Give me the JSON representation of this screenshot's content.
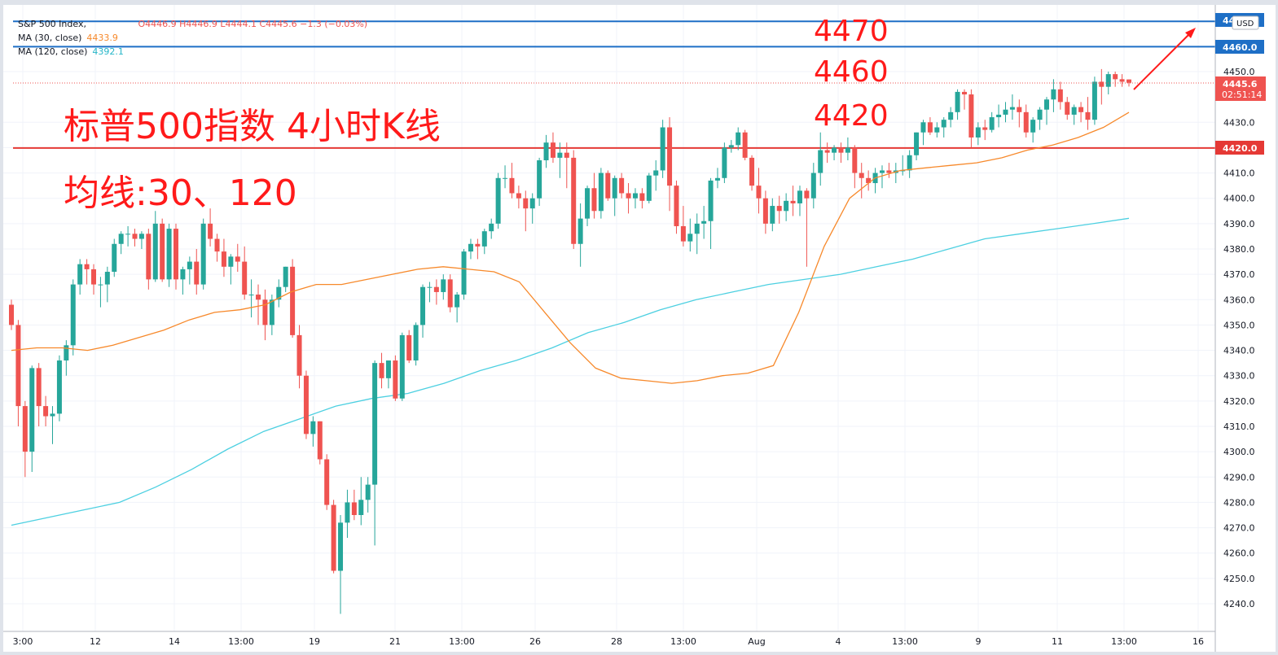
{
  "legend": {
    "symbol": "S&P 500 Index,",
    "ohlc": "O4446.9  H4446.9  L4444.1  C4445.6  −1.3 (−0.03%)",
    "ma30_label": "MA (30, close)",
    "ma30_value": "4433.9",
    "ma120_label": "MA (120, close)",
    "ma120_value": "4392.1"
  },
  "annotations": {
    "title": "标普500指数 4小时K线",
    "subtitle": "均线:30、120",
    "level_1": "4470",
    "level_2": "4460",
    "level_3": "4420"
  },
  "price_scale": {
    "currency": "USD",
    "last_price": "4445.6",
    "countdown": "02:51:14",
    "hline_top_label": "4470.0",
    "hline_mid_label": "4460.0",
    "hline_red_label": "4420.0"
  },
  "colors": {
    "up": "#26a69a",
    "down": "#ef5350",
    "ma30": "#f7892b",
    "ma120": "#4dd0e1",
    "hline_blue": "#1e6fc6",
    "hline_red": "#e53935",
    "annotation": "#ff1a1a"
  },
  "chart_data": {
    "type": "candlestick",
    "timeframe": "4h",
    "ylim": [
      4233,
      4475
    ],
    "y_ticks": [
      4240,
      4250,
      4260,
      4270,
      4280,
      4290,
      4300,
      4310,
      4320,
      4330,
      4340,
      4350,
      4360,
      4370,
      4380,
      4390,
      4400,
      4410,
      4420,
      4430,
      4450
    ],
    "x_labels": [
      "3:00",
      "12",
      "14",
      "13:00",
      "19",
      "21",
      "13:00",
      "26",
      "28",
      "13:00",
      "Aug",
      "4",
      "13:00",
      "9",
      "11",
      "13:00",
      "16"
    ],
    "horizontal_lines": [
      4470,
      4460,
      4420
    ],
    "candles": [
      {
        "o": 4358,
        "h": 4360,
        "l": 4348,
        "c": 4350
      },
      {
        "o": 4350,
        "h": 4352,
        "l": 4310,
        "c": 4318
      },
      {
        "o": 4318,
        "h": 4320,
        "l": 4290,
        "c": 4300
      },
      {
        "o": 4300,
        "h": 4334,
        "l": 4292,
        "c": 4333
      },
      {
        "o": 4333,
        "h": 4335,
        "l": 4310,
        "c": 4318
      },
      {
        "o": 4318,
        "h": 4322,
        "l": 4310,
        "c": 4314
      },
      {
        "o": 4314,
        "h": 4318,
        "l": 4303,
        "c": 4315
      },
      {
        "o": 4315,
        "h": 4338,
        "l": 4312,
        "c": 4336
      },
      {
        "o": 4336,
        "h": 4344,
        "l": 4330,
        "c": 4342
      },
      {
        "o": 4342,
        "h": 4368,
        "l": 4338,
        "c": 4366
      },
      {
        "o": 4366,
        "h": 4376,
        "l": 4362,
        "c": 4374
      },
      {
        "o": 4374,
        "h": 4376,
        "l": 4366,
        "c": 4372
      },
      {
        "o": 4372,
        "h": 4374,
        "l": 4362,
        "c": 4366
      },
      {
        "o": 4366,
        "h": 4369,
        "l": 4357,
        "c": 4366
      },
      {
        "o": 4366,
        "h": 4373,
        "l": 4359,
        "c": 4371
      },
      {
        "o": 4371,
        "h": 4384,
        "l": 4369,
        "c": 4382
      },
      {
        "o": 4382,
        "h": 4387,
        "l": 4378,
        "c": 4386
      },
      {
        "o": 4386,
        "h": 4389,
        "l": 4381,
        "c": 4386
      },
      {
        "o": 4386,
        "h": 4388,
        "l": 4381,
        "c": 4384
      },
      {
        "o": 4384,
        "h": 4387,
        "l": 4380,
        "c": 4386
      },
      {
        "o": 4386,
        "h": 4388,
        "l": 4364,
        "c": 4368
      },
      {
        "o": 4368,
        "h": 4395,
        "l": 4367,
        "c": 4390
      },
      {
        "o": 4390,
        "h": 4392,
        "l": 4367,
        "c": 4368
      },
      {
        "o": 4368,
        "h": 4390,
        "l": 4365,
        "c": 4388
      },
      {
        "o": 4388,
        "h": 4390,
        "l": 4364,
        "c": 4368
      },
      {
        "o": 4368,
        "h": 4373,
        "l": 4362,
        "c": 4372
      },
      {
        "o": 4372,
        "h": 4377,
        "l": 4366,
        "c": 4375
      },
      {
        "o": 4375,
        "h": 4380,
        "l": 4362,
        "c": 4366
      },
      {
        "o": 4366,
        "h": 4392,
        "l": 4364,
        "c": 4390
      },
      {
        "o": 4390,
        "h": 4396,
        "l": 4381,
        "c": 4384
      },
      {
        "o": 4384,
        "h": 4386,
        "l": 4375,
        "c": 4379
      },
      {
        "o": 4379,
        "h": 4384,
        "l": 4369,
        "c": 4373
      },
      {
        "o": 4373,
        "h": 4378,
        "l": 4366,
        "c": 4377
      },
      {
        "o": 4377,
        "h": 4382,
        "l": 4371,
        "c": 4375
      },
      {
        "o": 4375,
        "h": 4381,
        "l": 4360,
        "c": 4362
      },
      {
        "o": 4362,
        "h": 4368,
        "l": 4353,
        "c": 4362
      },
      {
        "o": 4362,
        "h": 4366,
        "l": 4350,
        "c": 4360
      },
      {
        "o": 4360,
        "h": 4364,
        "l": 4344,
        "c": 4350
      },
      {
        "o": 4350,
        "h": 4362,
        "l": 4346,
        "c": 4360
      },
      {
        "o": 4360,
        "h": 4368,
        "l": 4357,
        "c": 4365
      },
      {
        "o": 4365,
        "h": 4373,
        "l": 4363,
        "c": 4373
      },
      {
        "o": 4373,
        "h": 4376,
        "l": 4345,
        "c": 4346
      },
      {
        "o": 4346,
        "h": 4350,
        "l": 4325,
        "c": 4330
      },
      {
        "o": 4330,
        "h": 4332,
        "l": 4305,
        "c": 4307
      },
      {
        "o": 4307,
        "h": 4314,
        "l": 4302,
        "c": 4312
      },
      {
        "o": 4312,
        "h": 4312,
        "l": 4295,
        "c": 4297
      },
      {
        "o": 4297,
        "h": 4299,
        "l": 4277,
        "c": 4279
      },
      {
        "o": 4279,
        "h": 4281,
        "l": 4252,
        "c": 4253
      },
      {
        "o": 4253,
        "h": 4275,
        "l": 4236,
        "c": 4272
      },
      {
        "o": 4272,
        "h": 4285,
        "l": 4266,
        "c": 4280
      },
      {
        "o": 4280,
        "h": 4285,
        "l": 4273,
        "c": 4275
      },
      {
        "o": 4275,
        "h": 4290,
        "l": 4271,
        "c": 4281
      },
      {
        "o": 4281,
        "h": 4290,
        "l": 4276,
        "c": 4287
      },
      {
        "o": 4287,
        "h": 4336,
        "l": 4263,
        "c": 4335
      },
      {
        "o": 4335,
        "h": 4339,
        "l": 4325,
        "c": 4329
      },
      {
        "o": 4329,
        "h": 4336,
        "l": 4325,
        "c": 4336
      },
      {
        "o": 4336,
        "h": 4338,
        "l": 4320,
        "c": 4321
      },
      {
        "o": 4321,
        "h": 4347,
        "l": 4320,
        "c": 4346
      },
      {
        "o": 4346,
        "h": 4348,
        "l": 4335,
        "c": 4336
      },
      {
        "o": 4336,
        "h": 4351,
        "l": 4334,
        "c": 4350
      },
      {
        "o": 4350,
        "h": 4366,
        "l": 4345,
        "c": 4365
      },
      {
        "o": 4365,
        "h": 4367,
        "l": 4359,
        "c": 4365
      },
      {
        "o": 4365,
        "h": 4368,
        "l": 4358,
        "c": 4363
      },
      {
        "o": 4363,
        "h": 4370,
        "l": 4360,
        "c": 4368
      },
      {
        "o": 4368,
        "h": 4370,
        "l": 4355,
        "c": 4357
      },
      {
        "o": 4357,
        "h": 4363,
        "l": 4351,
        "c": 4362
      },
      {
        "o": 4362,
        "h": 4380,
        "l": 4360,
        "c": 4379
      },
      {
        "o": 4379,
        "h": 4384,
        "l": 4376,
        "c": 4382
      },
      {
        "o": 4382,
        "h": 4384,
        "l": 4376,
        "c": 4381
      },
      {
        "o": 4381,
        "h": 4388,
        "l": 4378,
        "c": 4387
      },
      {
        "o": 4387,
        "h": 4392,
        "l": 4384,
        "c": 4390
      },
      {
        "o": 4390,
        "h": 4410,
        "l": 4388,
        "c": 4408
      },
      {
        "o": 4408,
        "h": 4413,
        "l": 4404,
        "c": 4408
      },
      {
        "o": 4408,
        "h": 4414,
        "l": 4400,
        "c": 4402
      },
      {
        "o": 4402,
        "h": 4405,
        "l": 4396,
        "c": 4400
      },
      {
        "o": 4400,
        "h": 4403,
        "l": 4387,
        "c": 4396
      },
      {
        "o": 4396,
        "h": 4402,
        "l": 4390,
        "c": 4400
      },
      {
        "o": 4400,
        "h": 4416,
        "l": 4397,
        "c": 4415
      },
      {
        "o": 4415,
        "h": 4425,
        "l": 4412,
        "c": 4422
      },
      {
        "o": 4422,
        "h": 4426,
        "l": 4414,
        "c": 4416
      },
      {
        "o": 4416,
        "h": 4422,
        "l": 4408,
        "c": 4418
      },
      {
        "o": 4418,
        "h": 4422,
        "l": 4404,
        "c": 4416
      },
      {
        "o": 4416,
        "h": 4419,
        "l": 4380,
        "c": 4382
      },
      {
        "o": 4382,
        "h": 4398,
        "l": 4373,
        "c": 4392
      },
      {
        "o": 4392,
        "h": 4405,
        "l": 4389,
        "c": 4404
      },
      {
        "o": 4404,
        "h": 4410,
        "l": 4392,
        "c": 4395
      },
      {
        "o": 4395,
        "h": 4412,
        "l": 4392,
        "c": 4410
      },
      {
        "o": 4410,
        "h": 4411,
        "l": 4399,
        "c": 4400
      },
      {
        "o": 4400,
        "h": 4409,
        "l": 4393,
        "c": 4408
      },
      {
        "o": 4408,
        "h": 4410,
        "l": 4400,
        "c": 4402
      },
      {
        "o": 4402,
        "h": 4406,
        "l": 4394,
        "c": 4400
      },
      {
        "o": 4400,
        "h": 4404,
        "l": 4396,
        "c": 4402
      },
      {
        "o": 4402,
        "h": 4404,
        "l": 4396,
        "c": 4399
      },
      {
        "o": 4399,
        "h": 4410,
        "l": 4398,
        "c": 4409
      },
      {
        "o": 4409,
        "h": 4415,
        "l": 4403,
        "c": 4411
      },
      {
        "o": 4411,
        "h": 4431,
        "l": 4408,
        "c": 4428
      },
      {
        "o": 4428,
        "h": 4432,
        "l": 4395,
        "c": 4405
      },
      {
        "o": 4405,
        "h": 4407,
        "l": 4386,
        "c": 4389
      },
      {
        "o": 4389,
        "h": 4397,
        "l": 4381,
        "c": 4383
      },
      {
        "o": 4383,
        "h": 4392,
        "l": 4379,
        "c": 4386
      },
      {
        "o": 4386,
        "h": 4394,
        "l": 4378,
        "c": 4390
      },
      {
        "o": 4390,
        "h": 4397,
        "l": 4384,
        "c": 4391
      },
      {
        "o": 4391,
        "h": 4408,
        "l": 4380,
        "c": 4407
      },
      {
        "o": 4407,
        "h": 4412,
        "l": 4404,
        "c": 4408
      },
      {
        "o": 4408,
        "h": 4422,
        "l": 4406,
        "c": 4420
      },
      {
        "o": 4420,
        "h": 4423,
        "l": 4418,
        "c": 4421
      },
      {
        "o": 4421,
        "h": 4428,
        "l": 4419,
        "c": 4426
      },
      {
        "o": 4426,
        "h": 4427,
        "l": 4415,
        "c": 4416
      },
      {
        "o": 4416,
        "h": 4417,
        "l": 4403,
        "c": 4405
      },
      {
        "o": 4405,
        "h": 4412,
        "l": 4394,
        "c": 4400
      },
      {
        "o": 4400,
        "h": 4403,
        "l": 4386,
        "c": 4390
      },
      {
        "o": 4390,
        "h": 4400,
        "l": 4387,
        "c": 4397
      },
      {
        "o": 4397,
        "h": 4401,
        "l": 4390,
        "c": 4395
      },
      {
        "o": 4395,
        "h": 4402,
        "l": 4391,
        "c": 4399
      },
      {
        "o": 4399,
        "h": 4405,
        "l": 4393,
        "c": 4398
      },
      {
        "o": 4398,
        "h": 4405,
        "l": 4393,
        "c": 4403
      },
      {
        "o": 4403,
        "h": 4404,
        "l": 4373,
        "c": 4400
      },
      {
        "o": 4400,
        "h": 4414,
        "l": 4396,
        "c": 4410
      },
      {
        "o": 4410,
        "h": 4426,
        "l": 4405,
        "c": 4419
      },
      {
        "o": 4419,
        "h": 4422,
        "l": 4414,
        "c": 4418
      },
      {
        "o": 4418,
        "h": 4421,
        "l": 4415,
        "c": 4420
      },
      {
        "o": 4420,
        "h": 4422,
        "l": 4414,
        "c": 4418
      },
      {
        "o": 4418,
        "h": 4424,
        "l": 4415,
        "c": 4420
      },
      {
        "o": 4420,
        "h": 4421,
        "l": 4404,
        "c": 4410
      },
      {
        "o": 4410,
        "h": 4414,
        "l": 4400,
        "c": 4408
      },
      {
        "o": 4408,
        "h": 4411,
        "l": 4403,
        "c": 4406
      },
      {
        "o": 4406,
        "h": 4412,
        "l": 4402,
        "c": 4410
      },
      {
        "o": 4410,
        "h": 4413,
        "l": 4404,
        "c": 4411
      },
      {
        "o": 4411,
        "h": 4414,
        "l": 4408,
        "c": 4410
      },
      {
        "o": 4410,
        "h": 4414,
        "l": 4406,
        "c": 4411
      },
      {
        "o": 4411,
        "h": 4417,
        "l": 4409,
        "c": 4411
      },
      {
        "o": 4411,
        "h": 4419,
        "l": 4408,
        "c": 4417
      },
      {
        "o": 4417,
        "h": 4426,
        "l": 4415,
        "c": 4426
      },
      {
        "o": 4426,
        "h": 4431,
        "l": 4421,
        "c": 4430
      },
      {
        "o": 4430,
        "h": 4432,
        "l": 4425,
        "c": 4426
      },
      {
        "o": 4426,
        "h": 4430,
        "l": 4424,
        "c": 4428
      },
      {
        "o": 4428,
        "h": 4432,
        "l": 4424,
        "c": 4431
      },
      {
        "o": 4431,
        "h": 4436,
        "l": 4428,
        "c": 4434
      },
      {
        "o": 4434,
        "h": 4443,
        "l": 4431,
        "c": 4442
      },
      {
        "o": 4442,
        "h": 4443,
        "l": 4435,
        "c": 4441
      },
      {
        "o": 4441,
        "h": 4443,
        "l": 4420,
        "c": 4424
      },
      {
        "o": 4424,
        "h": 4430,
        "l": 4421,
        "c": 4428
      },
      {
        "o": 4428,
        "h": 4431,
        "l": 4423,
        "c": 4427
      },
      {
        "o": 4427,
        "h": 4434,
        "l": 4426,
        "c": 4432
      },
      {
        "o": 4432,
        "h": 4437,
        "l": 4428,
        "c": 4433
      },
      {
        "o": 4433,
        "h": 4438,
        "l": 4430,
        "c": 4435
      },
      {
        "o": 4435,
        "h": 4441,
        "l": 4431,
        "c": 4436
      },
      {
        "o": 4436,
        "h": 4439,
        "l": 4428,
        "c": 4434
      },
      {
        "o": 4434,
        "h": 4437,
        "l": 4424,
        "c": 4426
      },
      {
        "o": 4426,
        "h": 4432,
        "l": 4422,
        "c": 4431
      },
      {
        "o": 4431,
        "h": 4436,
        "l": 4427,
        "c": 4435
      },
      {
        "o": 4435,
        "h": 4440,
        "l": 4429,
        "c": 4439
      },
      {
        "o": 4439,
        "h": 4447,
        "l": 4434,
        "c": 4443
      },
      {
        "o": 4443,
        "h": 4446,
        "l": 4435,
        "c": 4438
      },
      {
        "o": 4438,
        "h": 4440,
        "l": 4431,
        "c": 4433
      },
      {
        "o": 4433,
        "h": 4437,
        "l": 4429,
        "c": 4436
      },
      {
        "o": 4436,
        "h": 4438,
        "l": 4430,
        "c": 4434
      },
      {
        "o": 4434,
        "h": 4440,
        "l": 4427,
        "c": 4431
      },
      {
        "o": 4431,
        "h": 4448,
        "l": 4429,
        "c": 4446
      },
      {
        "o": 4446,
        "h": 4451,
        "l": 4437,
        "c": 4444
      },
      {
        "o": 4444,
        "h": 4450,
        "l": 4441,
        "c": 4449
      },
      {
        "o": 4449,
        "h": 4450,
        "l": 4444,
        "c": 4447
      },
      {
        "o": 4447,
        "h": 4449,
        "l": 4444,
        "c": 4446
      },
      {
        "o": 4446.9,
        "h": 4446.9,
        "l": 4444.1,
        "c": 4445.6
      }
    ],
    "ma30": [
      4340,
      4341,
      4341,
      4340,
      4342,
      4345,
      4348,
      4352,
      4355,
      4356,
      4358,
      4363,
      4366,
      4366,
      4368,
      4370,
      4372,
      4373,
      4372,
      4371,
      4367,
      4355,
      4343,
      4333,
      4329,
      4328,
      4327,
      4328,
      4330,
      4331,
      4334,
      4355,
      4381,
      4400,
      4408,
      4411,
      4412,
      4413,
      4414,
      4416,
      4419,
      4421,
      4424,
      4428,
      4433.9
    ],
    "ma120": [
      4271,
      4274,
      4277,
      4280,
      4286,
      4293,
      4301,
      4308,
      4313,
      4318,
      4321,
      4323,
      4327,
      4332,
      4336,
      4341,
      4347,
      4351,
      4356,
      4360,
      4363,
      4366,
      4368,
      4370,
      4373,
      4376,
      4380,
      4384,
      4386,
      4388,
      4390,
      4392.1
    ]
  }
}
